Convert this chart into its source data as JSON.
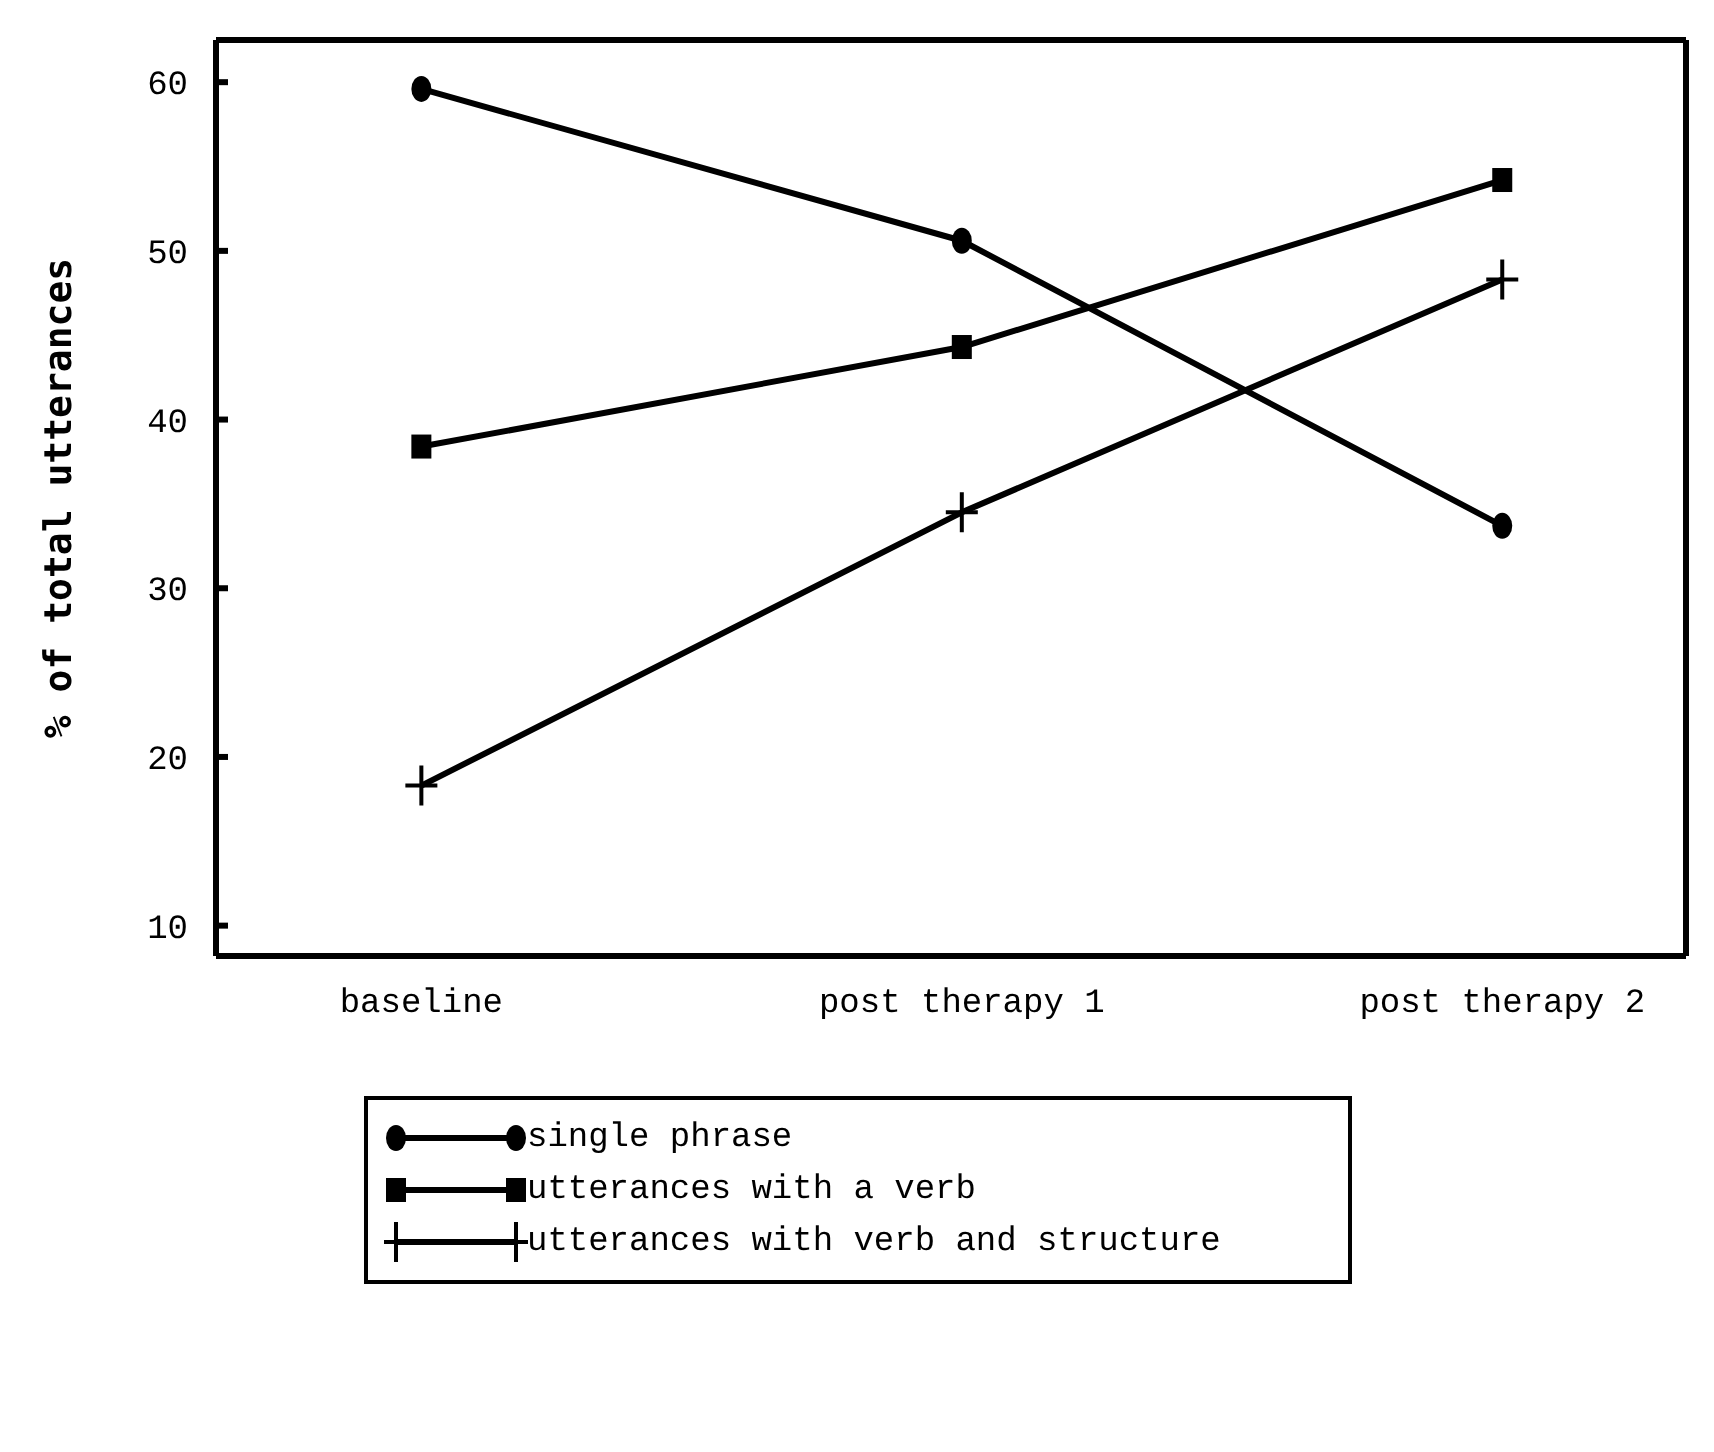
{
  "chart_data": {
    "type": "line",
    "ylabel": "% of total utterances",
    "categories": [
      "baseline",
      "post therapy 1",
      "post therapy 2"
    ],
    "series": [
      {
        "name": "single phrase",
        "color": "#000000",
        "marker": "circle",
        "values": [
          59.6,
          50.6,
          33.7
        ]
      },
      {
        "name": "utterances with a verb",
        "color": "#000000",
        "marker": "square",
        "values": [
          38.4,
          44.3,
          54.2
        ]
      },
      {
        "name": "utterances with verb and structure",
        "color": "#000000",
        "marker": "cross",
        "values": [
          18.3,
          34.5,
          48.3
        ]
      }
    ],
    "ylim": [
      8.2,
      62.5
    ],
    "yticks": [
      10,
      20,
      30,
      40,
      50,
      60
    ],
    "grid": false,
    "legend": "bottom",
    "line_style": "solid"
  }
}
